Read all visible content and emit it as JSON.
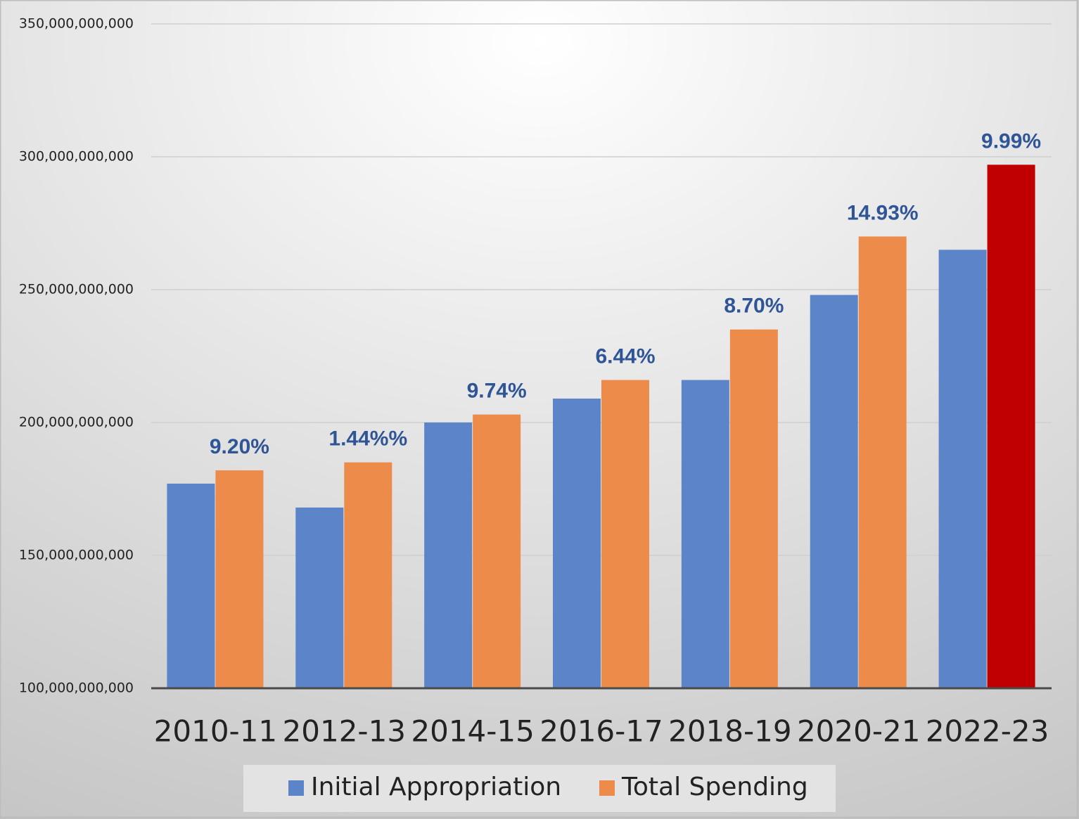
{
  "chart_data": {
    "type": "bar",
    "categories": [
      "2010-11",
      "2012-13",
      "2014-15",
      "2016-17",
      "2018-19",
      "2020-21",
      "2022-23"
    ],
    "series": [
      {
        "name": "Initial Appropriation",
        "color": "#5b84c9",
        "values": [
          177000000000,
          168000000000,
          200000000000,
          209000000000,
          216000000000,
          248000000000,
          265000000000
        ]
      },
      {
        "name": "Total Spending",
        "color": "#ed8c4a",
        "values": [
          182000000000,
          185000000000,
          203000000000,
          216000000000,
          235000000000,
          270000000000,
          297000000000
        ],
        "highlight": {
          "index": 6,
          "color": "#c00000"
        }
      }
    ],
    "annotations": [
      "9.20%",
      "1.44%%",
      "9.74%",
      "6.44%",
      "8.70%",
      "14.93%",
      "9.99%"
    ],
    "ylim": [
      100000000000,
      350000000000
    ],
    "yticks": [
      {
        "value": 100000000000,
        "label": "100,000,000,000"
      },
      {
        "value": 150000000000,
        "label": "150,000,000,000"
      },
      {
        "value": 200000000000,
        "label": "200,000,000,000"
      },
      {
        "value": 250000000000,
        "label": "250,000,000,000"
      },
      {
        "value": 300000000000,
        "label": "300,000,000,000"
      },
      {
        "value": 350000000000,
        "label": "350,000,000,000"
      }
    ],
    "grid": true,
    "legend": "bottom"
  }
}
